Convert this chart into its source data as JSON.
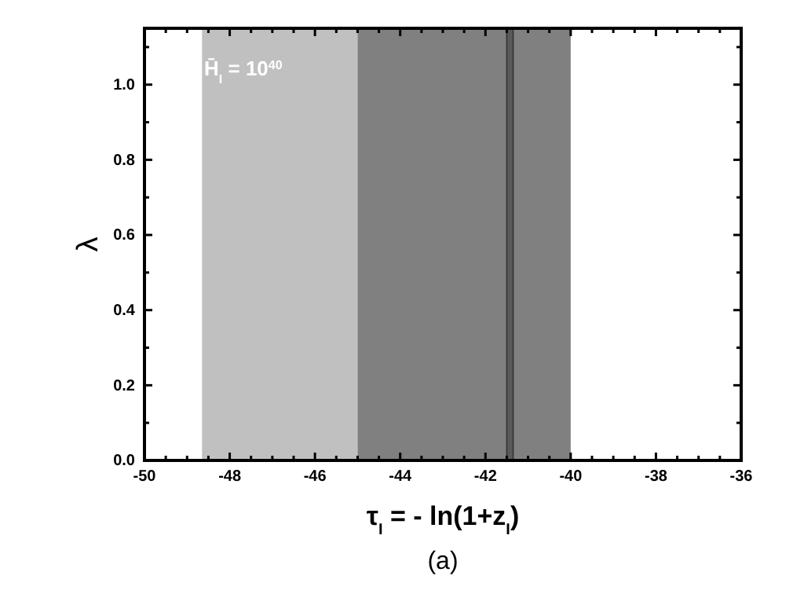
{
  "chart_data": {
    "type": "line",
    "xlabel": "τ$_{I}$ = - ln(1+z$_{I}$)",
    "ylabel": "λ",
    "xlim": [
      -50,
      -36
    ],
    "xticks": [
      -50,
      {
        "value": -49.5,
        "label": null
      },
      {
        "value": -49,
        "label": null
      },
      {
        "value": -48.5,
        "label": null
      },
      -48,
      {
        "value": -47.5,
        "label": null
      },
      {
        "value": -47,
        "label": null
      },
      {
        "value": -46.5,
        "label": null
      },
      -46,
      {
        "value": -45.5,
        "label": null
      },
      {
        "value": -45,
        "label": null
      },
      {
        "value": -44.5,
        "label": null
      },
      -44,
      {
        "value": -43.5,
        "label": null
      },
      {
        "value": -43,
        "label": null
      },
      {
        "value": -42.5,
        "label": null
      },
      -42,
      {
        "value": -41.5,
        "label": null
      },
      {
        "value": -41,
        "label": null
      },
      {
        "value": -40.5,
        "label": null
      },
      -40,
      {
        "value": -39.5,
        "label": null
      },
      {
        "value": -39,
        "label": null
      },
      {
        "value": -38.5,
        "label": null
      },
      -38,
      {
        "value": -37.5,
        "label": null
      },
      {
        "value": -37,
        "label": null
      },
      {
        "value": -36.5,
        "label": null
      },
      -36
    ],
    "ylim": [
      0,
      1.15
    ],
    "yticks": [
      {
        "value": 0,
        "label": "0.0"
      },
      {
        "value": 0.1,
        "label": null
      },
      0.2,
      {
        "value": 0.3,
        "label": null
      },
      0.4,
      {
        "value": 0.5,
        "label": null
      },
      0.6,
      {
        "value": 0.7,
        "label": null
      },
      0.8,
      {
        "value": 0.9,
        "label": null
      },
      {
        "value": 1,
        "label": "1.0"
      },
      {
        "value": 1.1,
        "label": null
      }
    ],
    "bands": [
      {
        "axis": "x",
        "from": -48.65,
        "to": -45,
        "color": "#c0c0c0"
      },
      {
        "axis": "x",
        "from": -45,
        "to": -40,
        "color": "#808080"
      },
      {
        "axis": "x",
        "from": -41.5,
        "to": -41.35,
        "color": "#5a5a5a"
      }
    ],
    "annotations": [
      "H̄$_{I}$ = 10$^{40}$",
      "(a)"
    ]
  }
}
